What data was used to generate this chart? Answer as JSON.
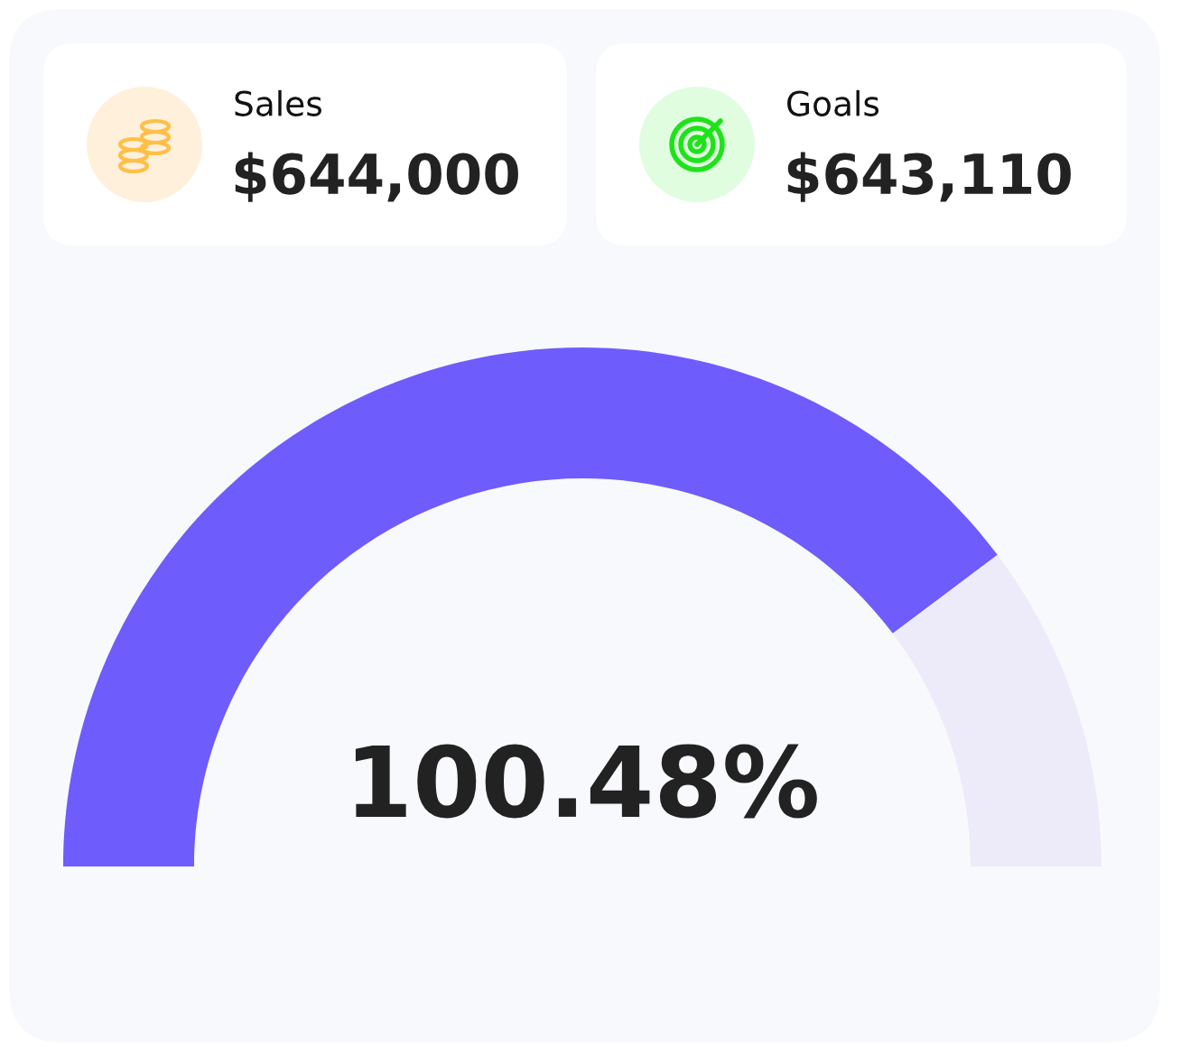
{
  "chart_data": [
    {
      "type": "other",
      "title": "Sales",
      "annotations": [
        "$644,000"
      ]
    },
    {
      "type": "other",
      "title": "Goals",
      "annotations": [
        "$643,110"
      ]
    },
    {
      "type": "donut",
      "categories": [
        null,
        null
      ],
      "values": [
        79.5,
        20.5
      ],
      "colors": [
        "#6e5cfc",
        "#edebf9"
      ],
      "annotations": [
        "100.48%"
      ]
    }
  ]
}
